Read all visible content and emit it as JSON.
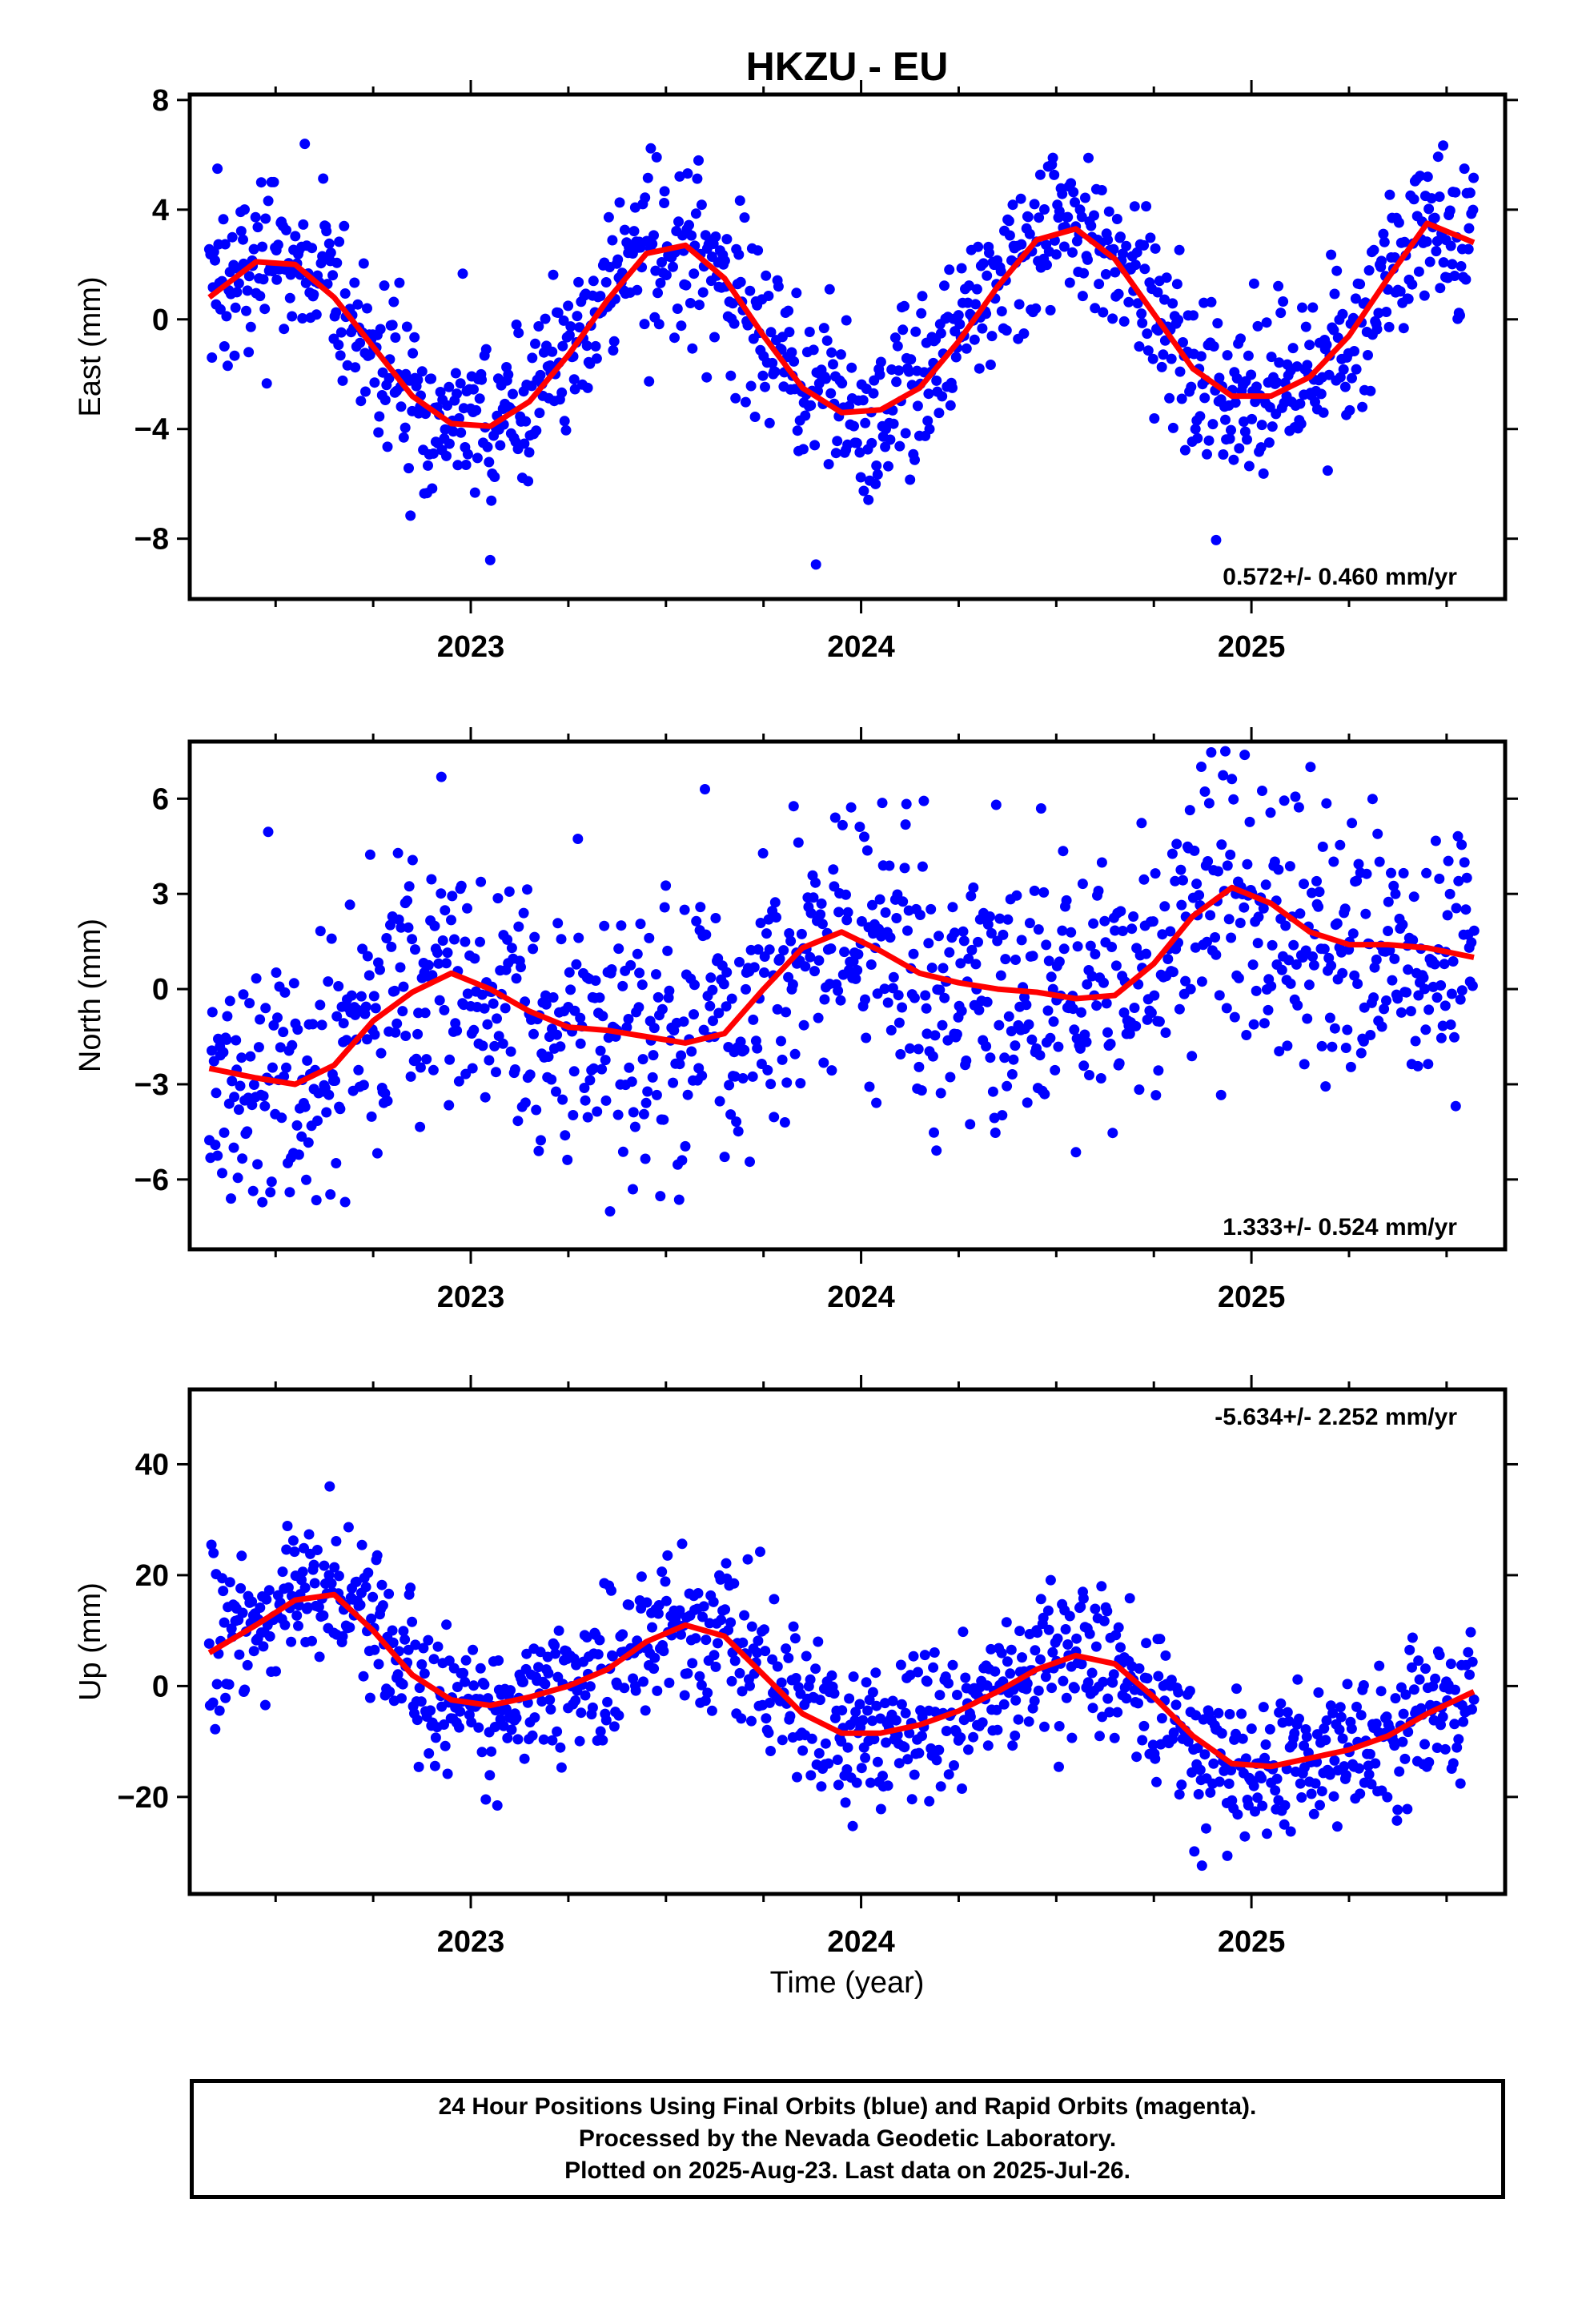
{
  "title": "HKZU - EU",
  "xlabel": "Time (year)",
  "footer": {
    "line1": "24 Hour Positions Using Final Orbits (blue) and Rapid Orbits (magenta).",
    "line2": "Processed by the Nevada Geodetic Laboratory.",
    "line3": "Plotted on 2025-Aug-23. Last data on 2025-Jul-26."
  },
  "colors": {
    "points": "#0000ff",
    "fit": "#ff0000"
  },
  "chart_data": [
    {
      "type": "scatter",
      "ylabel": "East (mm)",
      "rate_text": "0.572+/- 0.460 mm/yr",
      "rate_position": "bottom-right",
      "xlim": [
        2022.28,
        2025.65
      ],
      "ylim": [
        -10.2,
        8.2
      ],
      "yticks": [
        -8,
        -4,
        0,
        4,
        8
      ],
      "xticks": [
        2023,
        2024,
        2025
      ],
      "grid": false,
      "fit_curve": {
        "x": [
          2022.33,
          2022.45,
          2022.55,
          2022.65,
          2022.75,
          2022.85,
          2022.95,
          2023.05,
          2023.15,
          2023.25,
          2023.35,
          2023.45,
          2023.55,
          2023.65,
          2023.75,
          2023.85,
          2023.95,
          2024.05,
          2024.15,
          2024.25,
          2024.35,
          2024.45,
          2024.55,
          2024.65,
          2024.75,
          2024.85,
          2024.95,
          2025.05,
          2025.15,
          2025.25,
          2025.35,
          2025.45,
          2025.57
        ],
        "y": [
          0.8,
          2.1,
          2.0,
          0.8,
          -1.0,
          -2.8,
          -3.8,
          -3.9,
          -3.0,
          -1.3,
          0.7,
          2.4,
          2.7,
          1.5,
          -0.6,
          -2.5,
          -3.4,
          -3.3,
          -2.5,
          -0.8,
          1.2,
          2.9,
          3.3,
          2.2,
          0.2,
          -1.8,
          -2.8,
          -2.8,
          -2.1,
          -0.6,
          1.5,
          3.5,
          2.8
        ]
      },
      "fit_model": {
        "mean": -0.45,
        "trend": 0.572,
        "x0": 2024.0,
        "amp": 3.0,
        "period": 1.0,
        "phase_peak": 2023.45,
        "spread": 1.6
      }
    },
    {
      "type": "scatter",
      "ylabel": "North (mm)",
      "rate_text": "1.333+/- 0.524 mm/yr",
      "rate_position": "bottom-right",
      "xlim": [
        2022.28,
        2025.65
      ],
      "ylim": [
        -8.2,
        7.8
      ],
      "yticks": [
        -6,
        -3,
        0,
        3,
        6
      ],
      "xticks": [
        2023,
        2024,
        2025
      ],
      "grid": false,
      "fit_curve": {
        "x": [
          2022.33,
          2022.45,
          2022.55,
          2022.65,
          2022.75,
          2022.85,
          2022.95,
          2023.05,
          2023.15,
          2023.25,
          2023.35,
          2023.45,
          2023.55,
          2023.65,
          2023.75,
          2023.85,
          2023.95,
          2024.05,
          2024.15,
          2024.25,
          2024.35,
          2024.45,
          2024.55,
          2024.65,
          2024.75,
          2024.85,
          2024.95,
          2025.05,
          2025.15,
          2025.25,
          2025.35,
          2025.45,
          2025.57
        ],
        "y": [
          -2.5,
          -2.8,
          -3.0,
          -2.4,
          -1.0,
          -0.1,
          0.5,
          0.0,
          -0.7,
          -1.2,
          -1.3,
          -1.5,
          -1.7,
          -1.4,
          0.0,
          1.3,
          1.8,
          1.2,
          0.5,
          0.2,
          0.0,
          -0.1,
          -0.3,
          -0.2,
          0.8,
          2.3,
          3.2,
          2.7,
          1.8,
          1.4,
          1.4,
          1.3,
          1.0
        ]
      },
      "fit_model": {
        "mean": 0.0,
        "trend": 1.333,
        "x0": 2024.0,
        "amp": 1.5,
        "period": 1.0,
        "phase_peak": 2023.95,
        "spread": 2.1
      }
    },
    {
      "type": "scatter",
      "ylabel": "Up (mm)",
      "rate_text": "-5.634+/- 2.252 mm/yr",
      "rate_position": "top-right",
      "xlim": [
        2022.28,
        2025.65
      ],
      "ylim": [
        -37.5,
        53.5
      ],
      "yticks": [
        -20,
        0,
        20,
        40
      ],
      "xticks": [
        2023,
        2024,
        2025
      ],
      "grid": false,
      "fit_curve": {
        "x": [
          2022.33,
          2022.45,
          2022.55,
          2022.65,
          2022.75,
          2022.85,
          2022.95,
          2023.05,
          2023.15,
          2023.25,
          2023.35,
          2023.45,
          2023.55,
          2023.65,
          2023.75,
          2023.85,
          2023.95,
          2024.05,
          2024.15,
          2024.25,
          2024.35,
          2024.45,
          2024.55,
          2024.65,
          2024.75,
          2024.85,
          2024.95,
          2025.05,
          2025.15,
          2025.25,
          2025.35,
          2025.45,
          2025.57
        ],
        "y": [
          6.0,
          11.0,
          15.5,
          16.5,
          10.0,
          2.0,
          -2.5,
          -3.5,
          -2.0,
          0.0,
          3.0,
          8.0,
          11.0,
          9.0,
          2.0,
          -5.0,
          -8.5,
          -8.5,
          -7.0,
          -4.5,
          -1.0,
          3.0,
          5.5,
          4.0,
          -2.0,
          -9.0,
          -14.0,
          -14.5,
          -13.0,
          -11.5,
          -9.0,
          -5.0,
          -1.0
        ]
      },
      "fit_model": {
        "mean": 0.0,
        "trend": -5.634,
        "x0": 2024.0,
        "amp": 8.5,
        "period": 1.0,
        "phase_peak": 2022.65,
        "spread": 6.5
      }
    }
  ]
}
